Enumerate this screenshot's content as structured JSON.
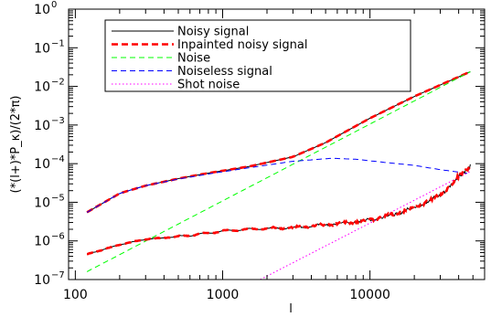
{
  "chart_data": {
    "type": "line",
    "title": "",
    "xlabel": "l",
    "ylabel": "(*(l+)*P_κ)/(2*π)",
    "xscale": "log",
    "yscale": "log",
    "xlim": [
      90,
      60000
    ],
    "ylim": [
      1e-07,
      1
    ],
    "grid": false,
    "legend_position": "top-left",
    "x_ticks": [
      {
        "value": 100,
        "label": "100"
      },
      {
        "value": 1000,
        "label": "1000"
      },
      {
        "value": 10000,
        "label": "10000"
      }
    ],
    "y_ticks": [
      {
        "value": 1.0,
        "base": "10",
        "exp": "0"
      },
      {
        "value": 0.1,
        "base": "10",
        "exp": "−1"
      },
      {
        "value": 0.01,
        "base": "10",
        "exp": "−2"
      },
      {
        "value": 0.001,
        "base": "10",
        "exp": "−3"
      },
      {
        "value": 0.0001,
        "base": "10",
        "exp": "−4"
      },
      {
        "value": 1e-05,
        "base": "10",
        "exp": "−5"
      },
      {
        "value": 1e-06,
        "base": "10",
        "exp": "−6"
      },
      {
        "value": 1e-07,
        "base": "10",
        "exp": "−7"
      }
    ],
    "series": [
      {
        "name": "Noisy signal",
        "color": "#000000",
        "dash": "solid",
        "x": [
          120,
          200,
          300,
          500,
          800,
          1500,
          3000,
          5000,
          10000,
          20000,
          48000
        ],
        "y": [
          5.5e-06,
          1.7e-05,
          2.7e-05,
          4.1e-05,
          5.7e-05,
          8.4e-05,
          0.00015,
          0.00035,
          0.0015,
          0.0055,
          0.024
        ]
      },
      {
        "name": "Inpainted noisy signal",
        "color": "#ff0000",
        "dash": "thick-dashed",
        "x": [
          120,
          200,
          300,
          500,
          800,
          1500,
          3000,
          5000,
          10000,
          20000,
          48000
        ],
        "y": [
          5.5e-06,
          1.7e-05,
          2.7e-05,
          4.1e-05,
          5.7e-05,
          8.4e-05,
          0.00015,
          0.00035,
          0.0015,
          0.0055,
          0.024
        ]
      },
      {
        "name": "Noise",
        "color": "#00ff00",
        "dash": "dashed",
        "x": [
          120,
          48000
        ],
        "y": [
          1.6e-07,
          0.024
        ]
      },
      {
        "name": "Noiseless signal",
        "color": "#0000ff",
        "dash": "dashed",
        "x": [
          120,
          200,
          300,
          500,
          800,
          1500,
          3000,
          5500,
          8000,
          12000,
          20000,
          30000,
          48000
        ],
        "y": [
          5.5e-06,
          1.7e-05,
          2.7e-05,
          4e-05,
          5.4e-05,
          7.8e-05,
          0.000115,
          0.000138,
          0.00013,
          0.00011,
          9e-05,
          7e-05,
          5.5e-05
        ]
      },
      {
        "name": "Shot noise",
        "color": "#ff00ff",
        "dash": "dotted",
        "x": [
          1800,
          48000
        ],
        "y": [
          1e-07,
          6.3e-05
        ]
      },
      {
        "name": "",
        "color": "#000000",
        "dash": "solid",
        "x": [
          120,
          200,
          300,
          500,
          700,
          1000,
          1500,
          2000,
          3000,
          5000,
          8000,
          10000,
          15000,
          20000,
          30000,
          48000
        ],
        "y": [
          4.5e-07,
          8e-07,
          1.1e-06,
          1.3e-06,
          1.5e-06,
          1.8e-06,
          2e-06,
          2.1e-06,
          2.2e-06,
          2.6e-06,
          3.1e-06,
          3.5e-06,
          5e-06,
          7.5e-06,
          1.5e-05,
          9e-05
        ]
      },
      {
        "name": "",
        "color": "#ff0000",
        "dash": "thick-dashed",
        "x": [
          120,
          200,
          300,
          500,
          700,
          1000,
          1500,
          2000,
          3000,
          5000,
          8000,
          10000,
          15000,
          20000,
          30000,
          48000
        ],
        "y": [
          4.5e-07,
          8e-07,
          1.1e-06,
          1.3e-06,
          1.5e-06,
          1.8e-06,
          2e-06,
          2.1e-06,
          2.2e-06,
          2.6e-06,
          3.1e-06,
          3.5e-06,
          5e-06,
          7.5e-06,
          1.5e-05,
          9e-05
        ]
      }
    ]
  }
}
